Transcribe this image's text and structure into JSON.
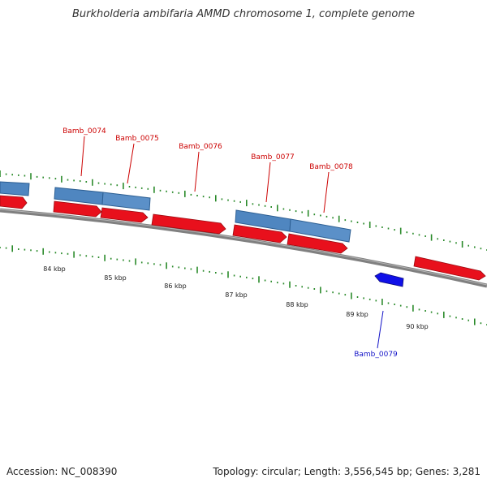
{
  "title": "Burkholderia ambifaria AMMD chromosome 1, complete genome",
  "footer": {
    "accession": "Accession: NC_008390",
    "summary": "Topology: circular; Length: 3,556,545 bp; Genes: 3,281"
  },
  "scale_labels": [
    "84 kbp",
    "85 kbp",
    "86 kbp",
    "87 kbp",
    "88 kbp",
    "89 kbp",
    "90 kbp"
  ],
  "colors": {
    "forward_cds": "#e8101c",
    "reverse_cds": "#1010e8",
    "gene_bar": "#4f86c0",
    "backbone": "#808080",
    "ticks": "#2a8a2a",
    "label_forward": "#cc0000",
    "label_reverse": "#1414c8"
  },
  "genes": [
    {
      "name": "Bamb_0074",
      "strand": "forward"
    },
    {
      "name": "Bamb_0075",
      "strand": "forward"
    },
    {
      "name": "Bamb_0076",
      "strand": "forward"
    },
    {
      "name": "Bamb_0077",
      "strand": "forward"
    },
    {
      "name": "Bamb_0078",
      "strand": "forward"
    },
    {
      "name": "Bamb_0079",
      "strand": "reverse"
    }
  ]
}
